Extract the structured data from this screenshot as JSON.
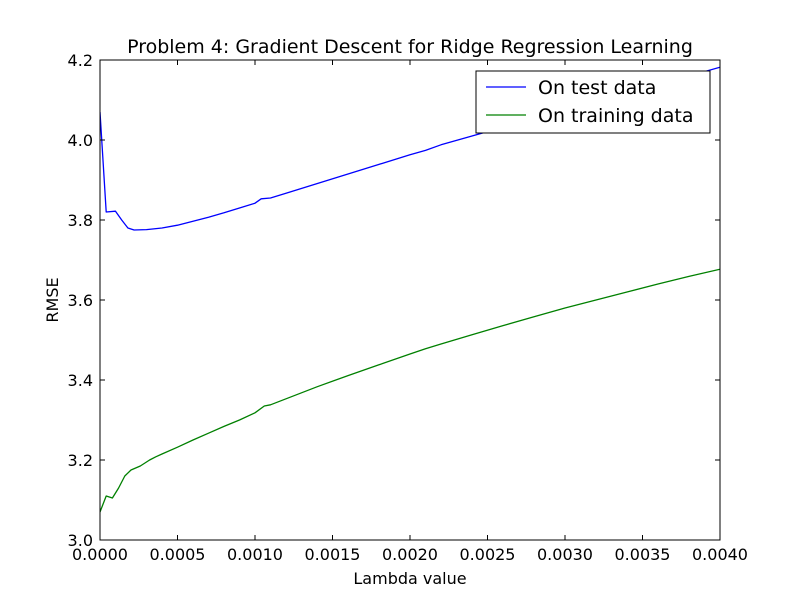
{
  "chart_data": {
    "type": "line",
    "title": "Problem 4: Gradient Descent for Ridge Regression Learning",
    "xlabel": "Lambda value",
    "ylabel": "RMSE",
    "xlim": [
      0.0,
      0.004
    ],
    "ylim": [
      3.0,
      4.2
    ],
    "xticks": [
      "0.0000",
      "0.0005",
      "0.0010",
      "0.0015",
      "0.0020",
      "0.0025",
      "0.0030",
      "0.0035",
      "0.0040"
    ],
    "yticks": [
      "3.0",
      "3.2",
      "3.4",
      "3.6",
      "3.8",
      "4.0",
      "4.2"
    ],
    "xtick_values": [
      0.0,
      0.0005,
      0.001,
      0.0015,
      0.002,
      0.0025,
      0.003,
      0.0035,
      0.004
    ],
    "ytick_values": [
      3.0,
      3.2,
      3.4,
      3.6,
      3.8,
      4.0,
      4.2
    ],
    "grid": false,
    "legend_position": "top-right",
    "series": [
      {
        "name": "On test data",
        "color": "#0000ff",
        "points": [
          [
            0.0,
            4.07
          ],
          [
            4e-05,
            3.82
          ],
          [
            0.0001,
            3.822
          ],
          [
            0.00014,
            3.8
          ],
          [
            0.00016,
            3.79
          ],
          [
            0.00018,
            3.78
          ],
          [
            0.00022,
            3.775
          ],
          [
            0.0003,
            3.776
          ],
          [
            0.0004,
            3.78
          ],
          [
            0.0005,
            3.787
          ],
          [
            0.0006,
            3.797
          ],
          [
            0.0007,
            3.807
          ],
          [
            0.0008,
            3.818
          ],
          [
            0.0009,
            3.83
          ],
          [
            0.001,
            3.842
          ],
          [
            0.00104,
            3.853
          ],
          [
            0.0011,
            3.855
          ],
          [
            0.0012,
            3.867
          ],
          [
            0.0014,
            3.891
          ],
          [
            0.0016,
            3.915
          ],
          [
            0.0018,
            3.939
          ],
          [
            0.002,
            3.963
          ],
          [
            0.0021,
            3.974
          ],
          [
            0.0022,
            3.988
          ],
          [
            0.0024,
            4.01
          ],
          [
            0.0026,
            4.032
          ],
          [
            0.0028,
            4.054
          ],
          [
            0.003,
            4.076
          ],
          [
            0.0032,
            4.096
          ],
          [
            0.0034,
            4.117
          ],
          [
            0.0036,
            4.138
          ],
          [
            0.0038,
            4.16
          ],
          [
            0.004,
            4.182
          ]
        ]
      },
      {
        "name": "On training data",
        "color": "#008000",
        "points": [
          [
            0.0,
            3.07
          ],
          [
            4e-05,
            3.11
          ],
          [
            8e-05,
            3.105
          ],
          [
            0.00012,
            3.13
          ],
          [
            0.00016,
            3.16
          ],
          [
            0.0002,
            3.175
          ],
          [
            0.00026,
            3.185
          ],
          [
            0.00032,
            3.2
          ],
          [
            0.00036,
            3.208
          ],
          [
            0.0004,
            3.215
          ],
          [
            0.0005,
            3.232
          ],
          [
            0.0006,
            3.25
          ],
          [
            0.0007,
            3.267
          ],
          [
            0.0008,
            3.284
          ],
          [
            0.0009,
            3.3
          ],
          [
            0.001,
            3.318
          ],
          [
            0.00106,
            3.335
          ],
          [
            0.0011,
            3.338
          ],
          [
            0.0012,
            3.353
          ],
          [
            0.0014,
            3.383
          ],
          [
            0.0016,
            3.411
          ],
          [
            0.0018,
            3.438
          ],
          [
            0.002,
            3.465
          ],
          [
            0.0021,
            3.478
          ],
          [
            0.0022,
            3.49
          ],
          [
            0.0024,
            3.513
          ],
          [
            0.0026,
            3.536
          ],
          [
            0.0028,
            3.558
          ],
          [
            0.003,
            3.58
          ],
          [
            0.0032,
            3.6
          ],
          [
            0.0034,
            3.62
          ],
          [
            0.0036,
            3.64
          ],
          [
            0.0038,
            3.659
          ],
          [
            0.004,
            3.677
          ]
        ]
      }
    ]
  }
}
